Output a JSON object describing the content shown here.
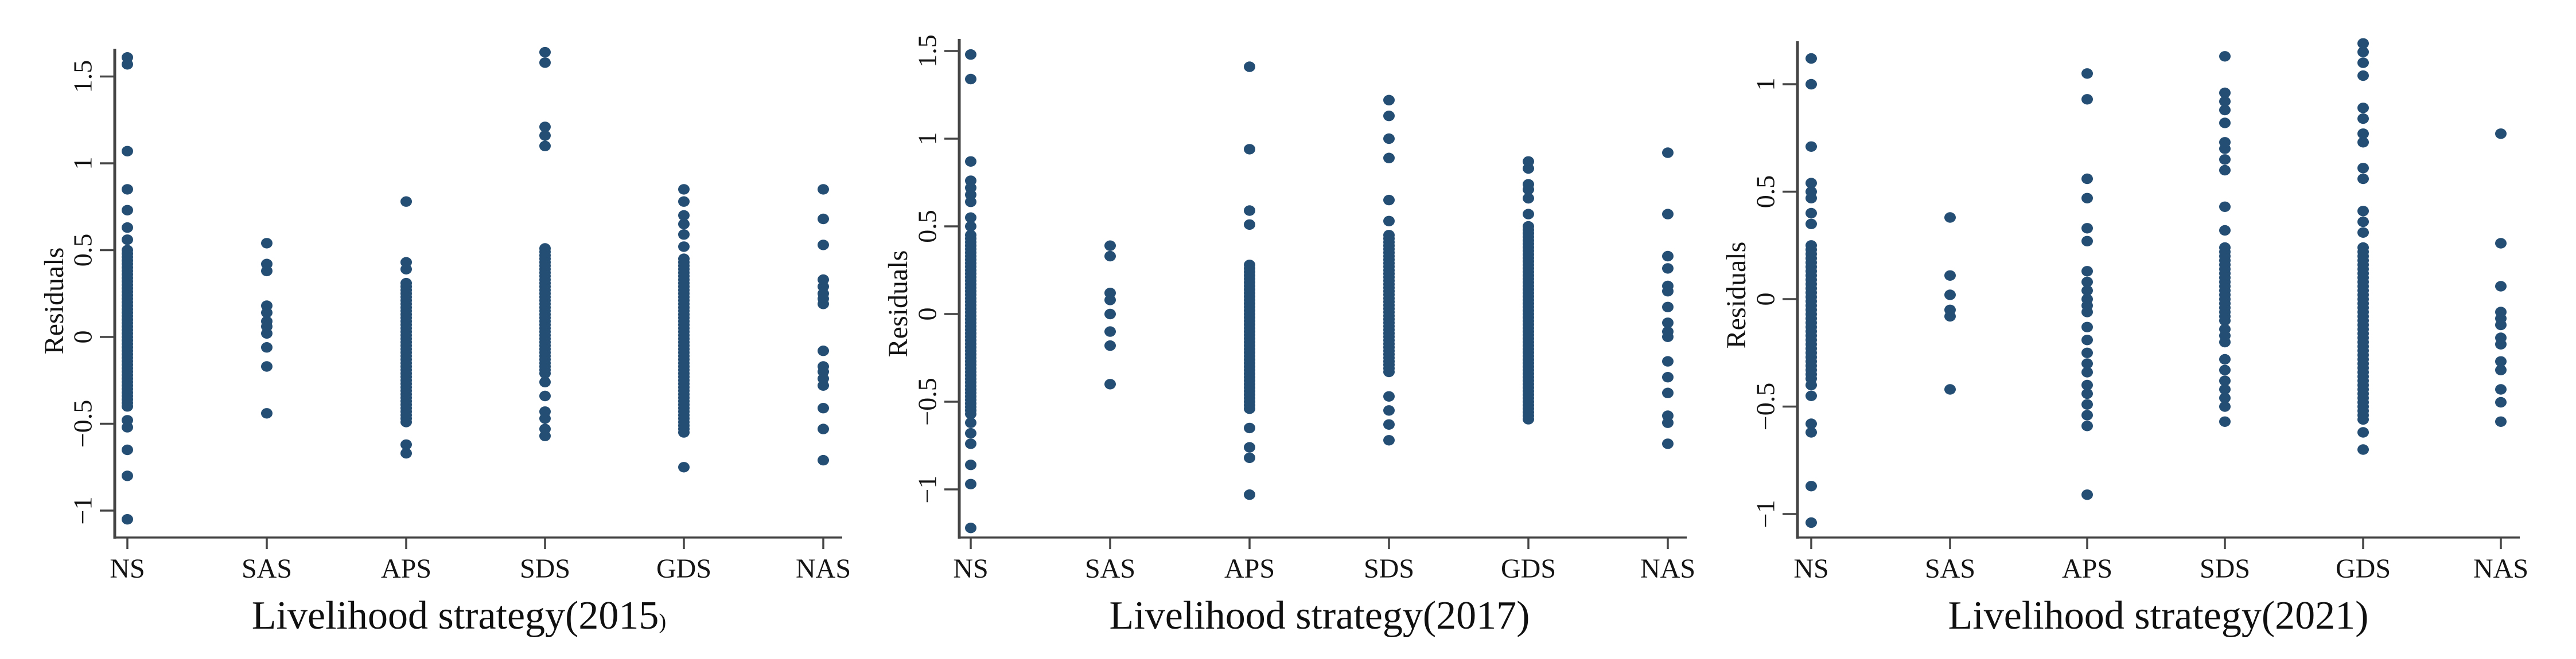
{
  "styles": {
    "point_color": "#254e74",
    "axis_color": "#454545",
    "text_color": "#141414",
    "background": "#ffffff"
  },
  "chart_data": [
    {
      "type": "scatter",
      "title_main": "Livelihood strategy(2015",
      "title_paren": ")",
      "ylabel": "Residuals",
      "categories": [
        "NS",
        "SAS",
        "APS",
        "SDS",
        "GDS",
        "NAS"
      ],
      "yticks": [
        1.5,
        1,
        0.5,
        0,
        -0.5,
        -1
      ],
      "ylim": [
        -1.15,
        1.7
      ],
      "grid": false,
      "legend": "none",
      "series": [
        {
          "name": "NS",
          "values": [
            1.61,
            1.57,
            1.07,
            0.85,
            0.73,
            0.63,
            0.56,
            0.5,
            0.48,
            0.46,
            0.44,
            0.42,
            0.4,
            0.38,
            0.36,
            0.34,
            0.32,
            0.3,
            0.28,
            0.26,
            0.24,
            0.22,
            0.2,
            0.18,
            0.16,
            0.14,
            0.12,
            0.1,
            0.08,
            0.06,
            0.04,
            0.02,
            0,
            -0.02,
            -0.04,
            -0.06,
            -0.08,
            -0.1,
            -0.12,
            -0.14,
            -0.16,
            -0.18,
            -0.2,
            -0.22,
            -0.24,
            -0.26,
            -0.28,
            -0.3,
            -0.32,
            -0.34,
            -0.36,
            -0.38,
            -0.4,
            -0.48,
            -0.52,
            -0.65,
            -0.8,
            -1.05
          ]
        },
        {
          "name": "SAS",
          "values": [
            0.54,
            0.42,
            0.38,
            0.18,
            0.14,
            0.09,
            0.06,
            0.02,
            -0.06,
            -0.17,
            -0.44
          ]
        },
        {
          "name": "APS",
          "values": [
            0.78,
            0.43,
            0.39,
            0.31,
            0.29,
            0.27,
            0.25,
            0.23,
            0.21,
            0.19,
            0.17,
            0.15,
            0.13,
            0.11,
            0.09,
            0.07,
            0.05,
            0.03,
            0.01,
            -0.01,
            -0.03,
            -0.05,
            -0.07,
            -0.09,
            -0.11,
            -0.13,
            -0.15,
            -0.17,
            -0.19,
            -0.21,
            -0.23,
            -0.25,
            -0.27,
            -0.29,
            -0.31,
            -0.33,
            -0.35,
            -0.37,
            -0.39,
            -0.41,
            -0.43,
            -0.45,
            -0.47,
            -0.49,
            -0.62,
            -0.67
          ]
        },
        {
          "name": "SDS",
          "values": [
            1.64,
            1.58,
            1.21,
            1.16,
            1.1,
            0.51,
            0.49,
            0.47,
            0.45,
            0.43,
            0.41,
            0.39,
            0.37,
            0.35,
            0.33,
            0.31,
            0.29,
            0.27,
            0.25,
            0.23,
            0.21,
            0.19,
            0.17,
            0.15,
            0.13,
            0.11,
            0.09,
            0.07,
            0.05,
            0.03,
            0.01,
            -0.01,
            -0.03,
            -0.05,
            -0.07,
            -0.09,
            -0.11,
            -0.13,
            -0.15,
            -0.17,
            -0.19,
            -0.21,
            -0.26,
            -0.34,
            -0.43,
            -0.47,
            -0.53,
            -0.57
          ]
        },
        {
          "name": "GDS",
          "values": [
            0.85,
            0.78,
            0.7,
            0.65,
            0.59,
            0.52,
            0.45,
            0.43,
            0.41,
            0.39,
            0.37,
            0.35,
            0.33,
            0.31,
            0.29,
            0.27,
            0.25,
            0.23,
            0.21,
            0.19,
            0.17,
            0.15,
            0.13,
            0.11,
            0.09,
            0.07,
            0.05,
            0.03,
            0.01,
            -0.01,
            -0.03,
            -0.05,
            -0.07,
            -0.09,
            -0.11,
            -0.13,
            -0.15,
            -0.17,
            -0.19,
            -0.21,
            -0.23,
            -0.25,
            -0.27,
            -0.29,
            -0.31,
            -0.33,
            -0.35,
            -0.37,
            -0.39,
            -0.41,
            -0.43,
            -0.45,
            -0.47,
            -0.49,
            -0.51,
            -0.53,
            -0.55,
            -0.75
          ]
        },
        {
          "name": "NAS",
          "values": [
            0.85,
            0.68,
            0.53,
            0.33,
            0.29,
            0.25,
            0.22,
            0.19,
            -0.08,
            -0.17,
            -0.2,
            -0.24,
            -0.28,
            -0.41,
            -0.53,
            -0.71
          ]
        }
      ]
    },
    {
      "type": "scatter",
      "title_main": "Livelihood strategy(2017)",
      "title_paren": "",
      "ylabel": "Residuals",
      "categories": [
        "NS",
        "SAS",
        "APS",
        "SDS",
        "GDS",
        "NAS"
      ],
      "yticks": [
        1.5,
        1,
        0.5,
        0,
        -0.5,
        -1
      ],
      "ylim": [
        -1.3,
        1.6
      ],
      "grid": false,
      "legend": "none",
      "series": [
        {
          "name": "NS",
          "values": [
            1.48,
            1.34,
            0.87,
            0.76,
            0.72,
            0.68,
            0.64,
            0.55,
            0.5,
            0.45,
            0.43,
            0.41,
            0.39,
            0.37,
            0.35,
            0.33,
            0.31,
            0.29,
            0.27,
            0.25,
            0.23,
            0.21,
            0.19,
            0.17,
            0.15,
            0.13,
            0.11,
            0.09,
            0.07,
            0.05,
            0.03,
            0.01,
            -0.01,
            -0.03,
            -0.05,
            -0.07,
            -0.09,
            -0.11,
            -0.13,
            -0.15,
            -0.17,
            -0.19,
            -0.21,
            -0.23,
            -0.25,
            -0.27,
            -0.29,
            -0.31,
            -0.33,
            -0.35,
            -0.37,
            -0.39,
            -0.41,
            -0.43,
            -0.45,
            -0.47,
            -0.49,
            -0.51,
            -0.53,
            -0.55,
            -0.57,
            -0.62,
            -0.68,
            -0.74,
            -0.86,
            -0.97,
            -1.22
          ]
        },
        {
          "name": "SAS",
          "values": [
            0.39,
            0.33,
            0.12,
            0.08,
            0,
            -0.1,
            -0.18,
            -0.4
          ]
        },
        {
          "name": "APS",
          "values": [
            1.41,
            0.94,
            0.59,
            0.51,
            0.28,
            0.26,
            0.24,
            0.22,
            0.2,
            0.18,
            0.16,
            0.14,
            0.12,
            0.1,
            0.08,
            0.06,
            0.04,
            0.02,
            0,
            -0.02,
            -0.04,
            -0.06,
            -0.08,
            -0.1,
            -0.12,
            -0.14,
            -0.16,
            -0.18,
            -0.2,
            -0.22,
            -0.24,
            -0.26,
            -0.28,
            -0.3,
            -0.32,
            -0.34,
            -0.36,
            -0.38,
            -0.4,
            -0.42,
            -0.44,
            -0.46,
            -0.48,
            -0.5,
            -0.52,
            -0.54,
            -0.65,
            -0.76,
            -0.82,
            -1.03
          ]
        },
        {
          "name": "SDS",
          "values": [
            1.22,
            1.13,
            1,
            0.89,
            0.65,
            0.53,
            0.45,
            0.43,
            0.41,
            0.39,
            0.37,
            0.35,
            0.33,
            0.31,
            0.29,
            0.27,
            0.25,
            0.23,
            0.21,
            0.19,
            0.17,
            0.15,
            0.13,
            0.11,
            0.09,
            0.07,
            0.05,
            0.03,
            0.01,
            -0.01,
            -0.03,
            -0.05,
            -0.07,
            -0.09,
            -0.11,
            -0.13,
            -0.15,
            -0.17,
            -0.19,
            -0.21,
            -0.23,
            -0.25,
            -0.27,
            -0.29,
            -0.31,
            -0.33,
            -0.47,
            -0.55,
            -0.63,
            -0.72
          ]
        },
        {
          "name": "GDS",
          "values": [
            0.87,
            0.83,
            0.74,
            0.71,
            0.66,
            0.57,
            0.5,
            0.48,
            0.46,
            0.44,
            0.42,
            0.4,
            0.38,
            0.36,
            0.34,
            0.32,
            0.3,
            0.28,
            0.26,
            0.24,
            0.22,
            0.2,
            0.18,
            0.16,
            0.14,
            0.12,
            0.1,
            0.08,
            0.06,
            0.04,
            0.02,
            0,
            -0.02,
            -0.04,
            -0.06,
            -0.08,
            -0.1,
            -0.12,
            -0.14,
            -0.16,
            -0.18,
            -0.2,
            -0.22,
            -0.24,
            -0.26,
            -0.28,
            -0.3,
            -0.32,
            -0.34,
            -0.36,
            -0.38,
            -0.4,
            -0.42,
            -0.44,
            -0.46,
            -0.48,
            -0.5,
            -0.52,
            -0.54,
            -0.56,
            -0.58,
            -0.6
          ]
        },
        {
          "name": "NAS",
          "values": [
            0.92,
            0.57,
            0.33,
            0.26,
            0.16,
            0.13,
            0.04,
            -0.05,
            -0.1,
            -0.13,
            -0.27,
            -0.36,
            -0.45,
            -0.58,
            -0.62,
            -0.74
          ]
        }
      ]
    },
    {
      "type": "scatter",
      "title_main": "Livelihood strategy(2021)",
      "title_paren": "",
      "ylabel": "Residuals",
      "categories": [
        "NS",
        "SAS",
        "APS",
        "SDS",
        "GDS",
        "NAS"
      ],
      "yticks": [
        1,
        0.5,
        0,
        -0.5,
        -1
      ],
      "ylim": [
        -1.15,
        1.25
      ],
      "grid": false,
      "legend": "none",
      "series": [
        {
          "name": "NS",
          "values": [
            1.12,
            1,
            0.71,
            0.54,
            0.5,
            0.47,
            0.4,
            0.35,
            0.25,
            0.23,
            0.21,
            0.19,
            0.17,
            0.15,
            0.13,
            0.11,
            0.09,
            0.07,
            0.05,
            0.03,
            0.01,
            -0.01,
            -0.03,
            -0.05,
            -0.07,
            -0.09,
            -0.11,
            -0.13,
            -0.15,
            -0.17,
            -0.19,
            -0.21,
            -0.23,
            -0.25,
            -0.27,
            -0.29,
            -0.31,
            -0.33,
            -0.35,
            -0.37,
            -0.4,
            -0.45,
            -0.58,
            -0.62,
            -0.87,
            -1.04
          ]
        },
        {
          "name": "SAS",
          "values": [
            0.38,
            0.11,
            0.02,
            -0.05,
            -0.08,
            -0.42
          ]
        },
        {
          "name": "APS",
          "values": [
            1.05,
            0.93,
            0.56,
            0.47,
            0.33,
            0.27,
            0.13,
            0.08,
            0.04,
            0,
            -0.03,
            -0.06,
            -0.13,
            -0.19,
            -0.25,
            -0.3,
            -0.34,
            -0.4,
            -0.44,
            -0.49,
            -0.54,
            -0.59,
            -0.91
          ]
        },
        {
          "name": "SDS",
          "values": [
            1.13,
            0.96,
            0.92,
            0.88,
            0.82,
            0.73,
            0.7,
            0.65,
            0.6,
            0.43,
            0.32,
            0.24,
            0.22,
            0.2,
            0.18,
            0.16,
            0.14,
            0.12,
            0.1,
            0.08,
            0.06,
            0.04,
            0.02,
            0,
            -0.02,
            -0.04,
            -0.06,
            -0.08,
            -0.1,
            -0.14,
            -0.17,
            -0.2,
            -0.28,
            -0.33,
            -0.38,
            -0.42,
            -0.46,
            -0.5,
            -0.57
          ]
        },
        {
          "name": "GDS",
          "values": [
            1.19,
            1.15,
            1.1,
            1.04,
            0.89,
            0.84,
            0.77,
            0.73,
            0.61,
            0.56,
            0.41,
            0.36,
            0.31,
            0.24,
            0.22,
            0.2,
            0.18,
            0.16,
            0.14,
            0.12,
            0.1,
            0.08,
            0.06,
            0.04,
            0.02,
            0,
            -0.02,
            -0.04,
            -0.06,
            -0.08,
            -0.1,
            -0.12,
            -0.14,
            -0.16,
            -0.18,
            -0.2,
            -0.22,
            -0.24,
            -0.26,
            -0.28,
            -0.3,
            -0.32,
            -0.34,
            -0.36,
            -0.38,
            -0.4,
            -0.42,
            -0.44,
            -0.46,
            -0.48,
            -0.5,
            -0.52,
            -0.54,
            -0.56,
            -0.62,
            -0.7
          ]
        },
        {
          "name": "NAS",
          "values": [
            0.77,
            0.26,
            0.06,
            -0.06,
            -0.09,
            -0.12,
            -0.18,
            -0.21,
            -0.29,
            -0.33,
            -0.42,
            -0.48,
            -0.57
          ]
        }
      ]
    }
  ]
}
